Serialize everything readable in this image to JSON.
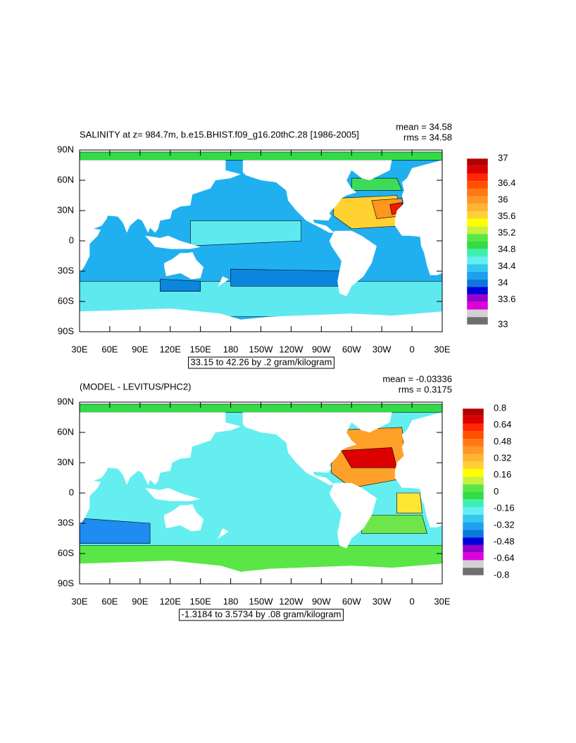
{
  "x_labels": [
    "30E",
    "60E",
    "90E",
    "120E",
    "150E",
    "180",
    "150W",
    "120W",
    "90W",
    "60W",
    "30W",
    "0",
    "30E"
  ],
  "y_labels": [
    "90N",
    "60N",
    "30N",
    "0",
    "30S",
    "60S",
    "90S"
  ],
  "panels": [
    {
      "title": "SALINITY at z= 984.7m, b.e15.BHIST.f09_g16.20thC.28 [1986-2005]",
      "mean": "mean = 34.58",
      "rms": "rms = 34.58",
      "info": "33.15 to 42.26 by .2 gram/kilogram",
      "colorbar": [
        37,
        36.4,
        36,
        35.6,
        35.2,
        34.8,
        34.4,
        34,
        33.6,
        33
      ]
    },
    {
      "title": "(MODEL - LEVITUS/PHC2)",
      "mean": "mean = -0.03336",
      "rms": "rms = 0.3175",
      "info": "-1.3184 to 3.5734 by .08 gram/kilogram",
      "colorbar": [
        0.8,
        0.64,
        0.48,
        0.32,
        0.16,
        0,
        -0.16,
        -0.32,
        -0.48,
        -0.64,
        -0.8
      ]
    }
  ]
}
